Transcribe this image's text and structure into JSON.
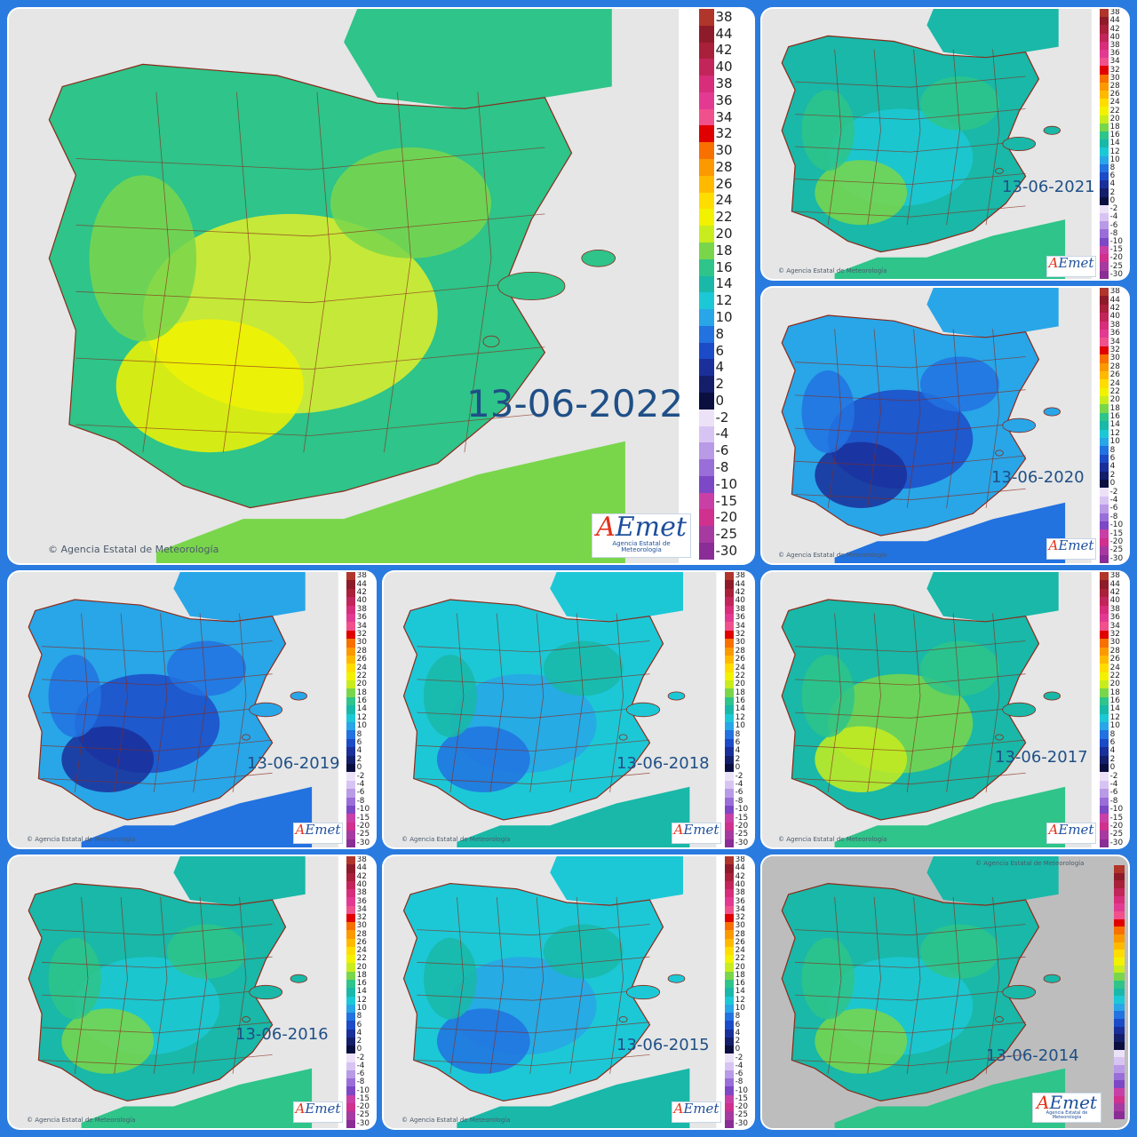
{
  "credit": "© Agencia Estatal de Meteorología",
  "logo": {
    "mark_a": "A",
    "mark_rest": "Emet",
    "subtitle": "Agencia Estatal de Meteorología"
  },
  "legend": {
    "labels": [
      "38",
      "44",
      "42",
      "40",
      "38",
      "36",
      "34",
      "32",
      "30",
      "28",
      "26",
      "24",
      "22",
      "20",
      "18",
      "16",
      "14",
      "12",
      "10",
      "8",
      "6",
      "4",
      "2",
      "0",
      "-2",
      "-4",
      "-6",
      "-8",
      "-10",
      "-15",
      "-20",
      "-25",
      "-30"
    ],
    "colors": [
      "#b0352a",
      "#8e1b2a",
      "#a8203a",
      "#c2255a",
      "#d82d7a",
      "#e23a92",
      "#f0508c",
      "#e00000",
      "#f77000",
      "#fb9900",
      "#ffba00",
      "#ffdd00",
      "#f2f200",
      "#c8ec1e",
      "#79d64b",
      "#2ec48a",
      "#19b8a8",
      "#1cc8d6",
      "#28a6e8",
      "#2272e0",
      "#1c4bc8",
      "#1a2f9a",
      "#141e6a",
      "#0a0f40",
      "#ece2f8",
      "#d8c4f2",
      "#b99ae6",
      "#9a6ed8",
      "#7c48c6",
      "#c840a6",
      "#d0308e",
      "#a63aa0",
      "#8a2d96"
    ]
  },
  "maps": [
    {
      "id": "map-2022",
      "date": "13-06-2022",
      "tone": "warm"
    },
    {
      "id": "map-2021",
      "date": "13-06-2021",
      "tone": "mild"
    },
    {
      "id": "map-2020",
      "date": "13-06-2020",
      "tone": "cold"
    },
    {
      "id": "map-2019",
      "date": "13-06-2019",
      "tone": "cold"
    },
    {
      "id": "map-2018",
      "date": "13-06-2018",
      "tone": "cool"
    },
    {
      "id": "map-2017",
      "date": "13-06-2017",
      "tone": "warmish"
    },
    {
      "id": "map-2016",
      "date": "13-06-2016",
      "tone": "mild"
    },
    {
      "id": "map-2015",
      "date": "13-06-2015",
      "tone": "cool"
    },
    {
      "id": "map-2014",
      "date": "13-06-2014",
      "tone": "mild"
    }
  ]
}
